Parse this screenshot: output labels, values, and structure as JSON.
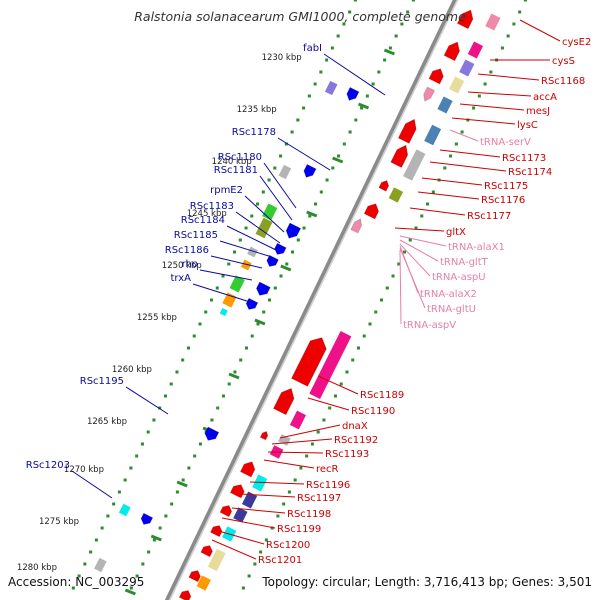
{
  "title": "Ralstonia solanacearum GMI1000, complete genome",
  "accession_label": "Accession: NC_003295",
  "summary_label": "Topology: circular; Length: 3,716,413 bp; Genes: 3,501",
  "kbp_ticks": [
    "1230 kbp",
    "1235 kbp",
    "1240 kbp",
    "1245 kbp",
    "1250 kbp",
    "1255 kbp",
    "1260 kbp",
    "1265 kbp",
    "1270 kbp",
    "1275 kbp",
    "1280 kbp"
  ],
  "left_labels": [
    "fabI",
    "RSc1178",
    "RSc1180",
    "RSc1181",
    "rpmE2",
    "RSc1183",
    "RSc1184",
    "RSc1185",
    "RSc1186",
    "rho",
    "trxA",
    "RSc1195",
    "RSc1203"
  ],
  "right_labels": [
    "cysE2",
    "cysS",
    "RSc1168",
    "accA",
    "mesJ",
    "lysC",
    "tRNA-serV",
    "RSc1173",
    "RSc1174",
    "RSc1175",
    "RSc1176",
    "RSc1177",
    "gltX",
    "tRNA-alaX1",
    "tRNA-gltT",
    "tRNA-aspU",
    "tRNA-alaX2",
    "tRNA-gltU",
    "tRNA-aspV",
    "RSc1189",
    "RSc1190",
    "dnaX",
    "RSc1192",
    "RSc1193",
    "recR",
    "RSc1196",
    "RSc1197",
    "RSc1198",
    "RSc1199",
    "RSc1200",
    "RSc1201"
  ],
  "colors": {
    "left_label": "#0a0aa0",
    "right_label": "#cc0000",
    "trna_label": "#e67fa8",
    "backbone": "#a0a0a0",
    "dots": "#2e8b2e",
    "gene_red": "#ee0000",
    "gene_blue": "#0000ee",
    "gene_magenta": "#ee1188",
    "gene_pink": "#f08aaa",
    "gene_steel": "#4a82b4",
    "gene_olive": "#8aa020",
    "gene_gray": "#b4b4b4",
    "gene_cyan": "#00ecec",
    "gene_green": "#33cc33",
    "gene_orange": "#ff9900",
    "gene_navy": "#3a3a9a",
    "gene_lavender": "#8877dd",
    "gene_khaki": "#e8dc9c"
  }
}
